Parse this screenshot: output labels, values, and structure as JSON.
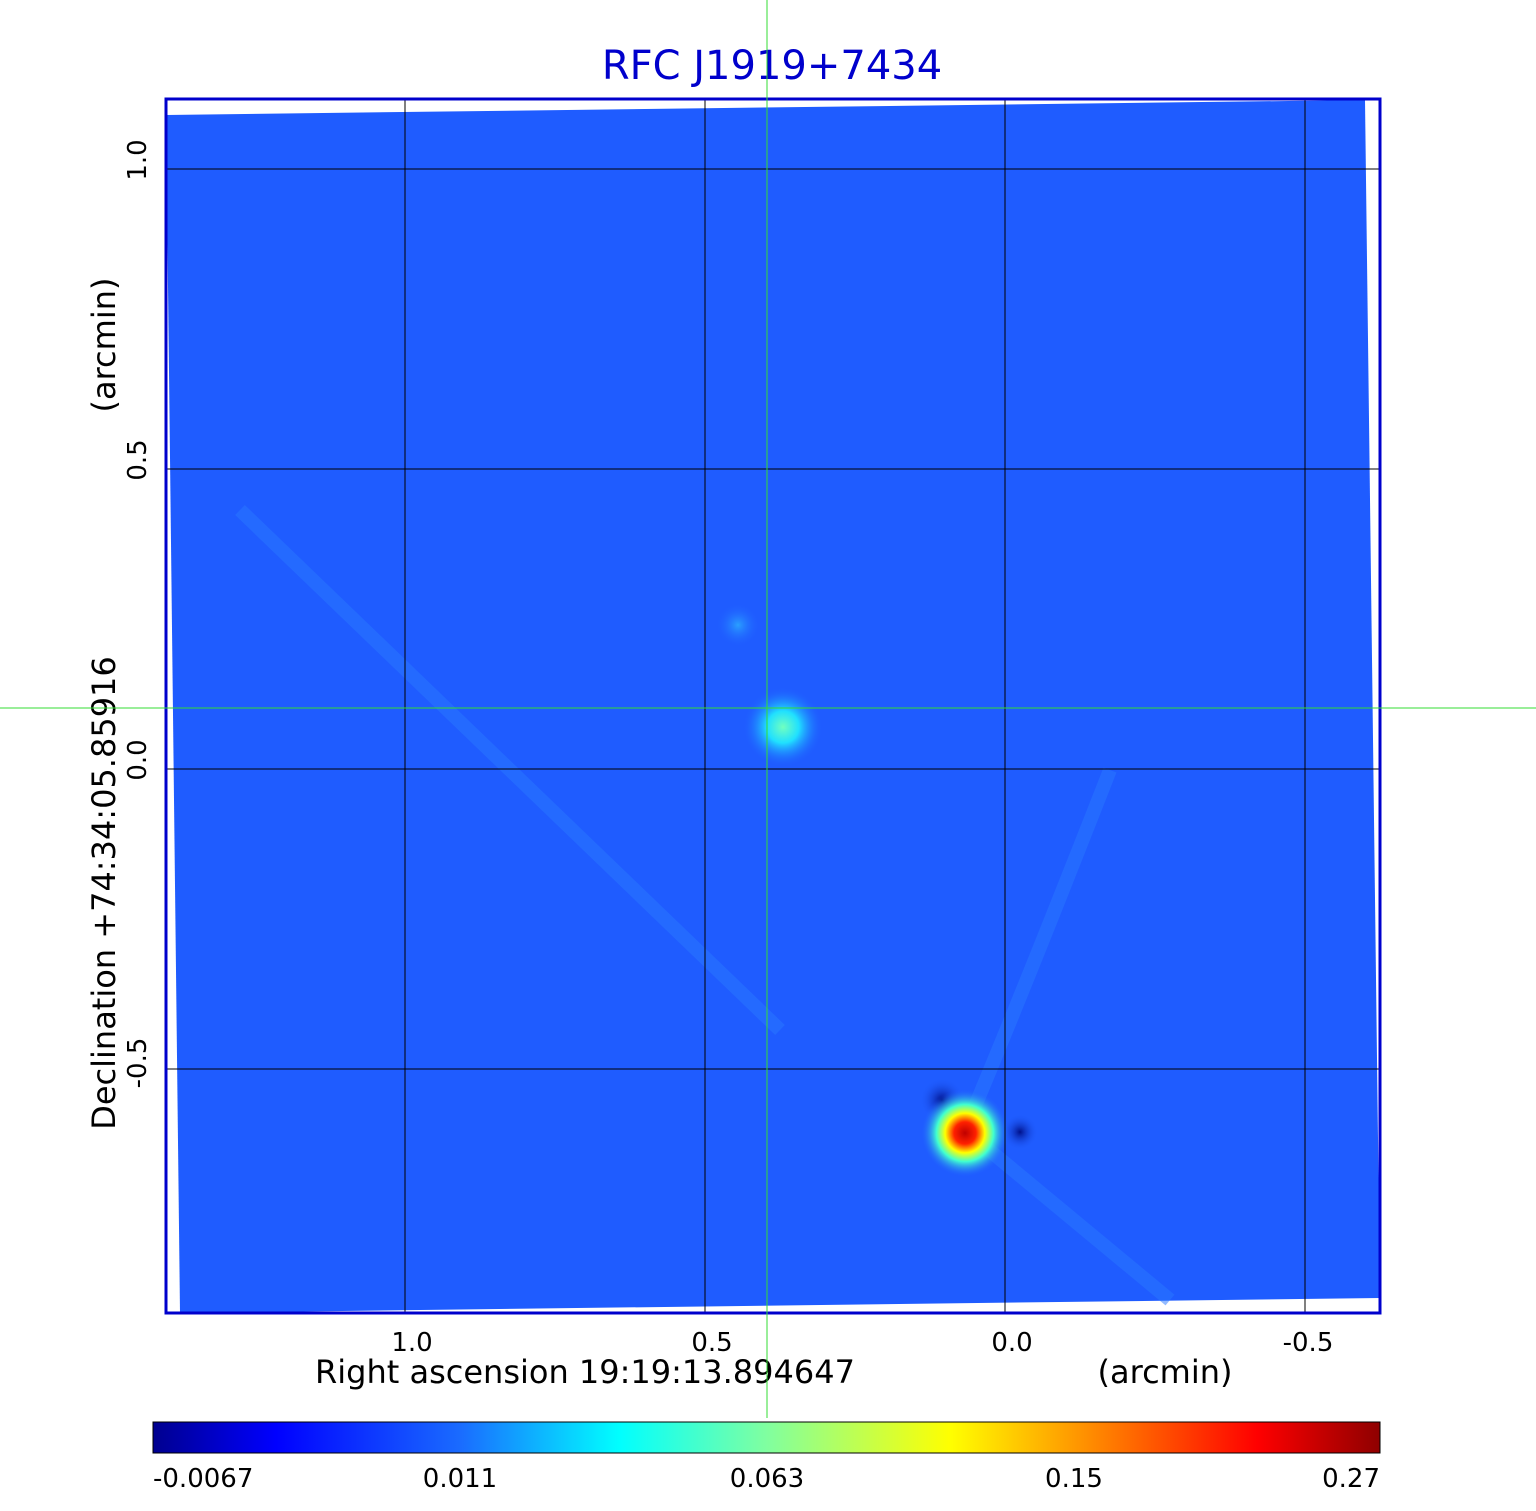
{
  "title": "RFC J1919+7434",
  "x_axis": {
    "label": "Right ascension  19:19:13.894647",
    "unit": "(arcmin)",
    "ticks": [
      "1.0",
      "0.5",
      "0.0",
      "-0.5"
    ]
  },
  "y_axis": {
    "label": "Declination  +74:34:05.85916",
    "unit": "(arcmin)",
    "ticks": [
      "1.0",
      "0.5",
      "0.0",
      "-0.5"
    ]
  },
  "colorbar": {
    "ticks": [
      "-0.0067",
      "0.011",
      "0.063",
      "0.15",
      "0.27"
    ]
  }
}
